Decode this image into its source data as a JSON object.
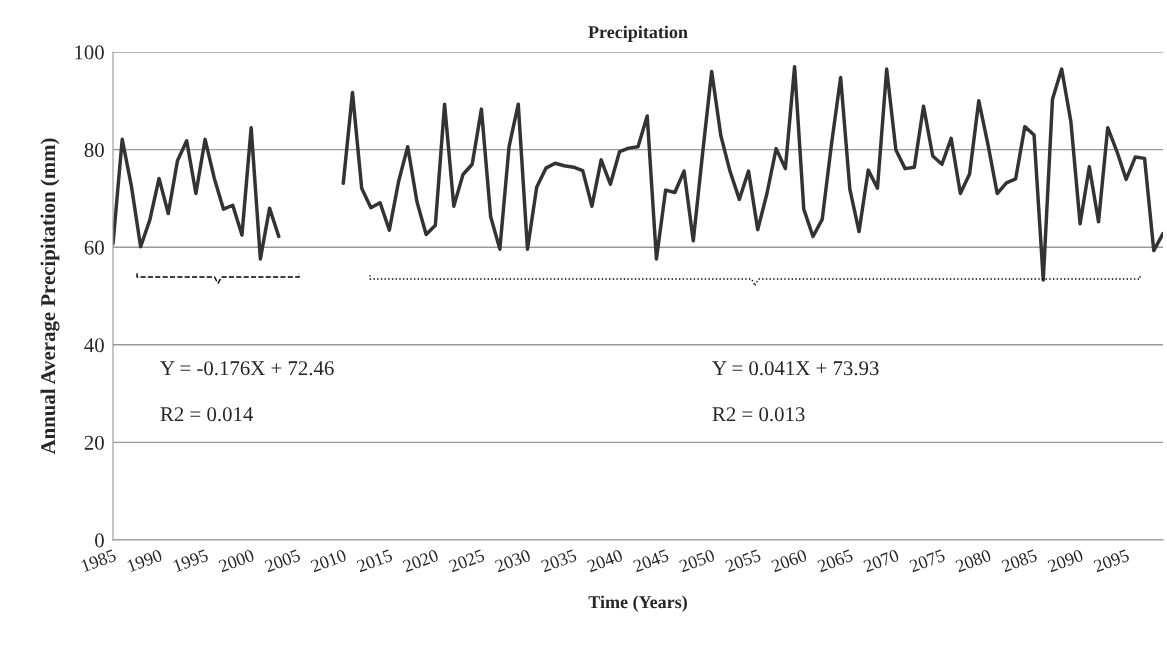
{
  "chart_data": {
    "type": "line",
    "title": "Precipitation",
    "xlabel": "Time (Years)",
    "ylabel": "Annual Average Precipitation (mm)",
    "x": [
      1985,
      1986,
      1987,
      1988,
      1989,
      1990,
      1991,
      1992,
      1993,
      1994,
      1995,
      1996,
      1997,
      1998,
      1999,
      2000,
      2001,
      2002,
      2003,
      2004,
      2005,
      2006,
      2007,
      2008,
      2009,
      2010,
      2011,
      2012,
      2013,
      2014,
      2015,
      2016,
      2017,
      2018,
      2019,
      2020,
      2021,
      2022,
      2023,
      2024,
      2025,
      2026,
      2027,
      2028,
      2029,
      2030,
      2031,
      2032,
      2033,
      2034,
      2035,
      2036,
      2037,
      2038,
      2039,
      2040,
      2041,
      2042,
      2043,
      2044,
      2045,
      2046,
      2047,
      2048,
      2049,
      2050,
      2051,
      2052,
      2053,
      2054,
      2055,
      2056,
      2057,
      2058,
      2059,
      2060,
      2061,
      2062,
      2063,
      2064,
      2065,
      2066,
      2067,
      2068,
      2069,
      2070,
      2071,
      2072,
      2073,
      2074,
      2075,
      2076,
      2077,
      2078,
      2079,
      2080,
      2081,
      2082,
      2083,
      2084,
      2085,
      2086,
      2087,
      2088,
      2089,
      2090,
      2091,
      2092,
      2093,
      2094,
      2095,
      2096,
      2097,
      2098,
      2099
    ],
    "series": [
      {
        "color": "#333333",
        "values": [
          60.7,
          82.1,
          72.5,
          60.1,
          65.6,
          74.1,
          66.9,
          77.7,
          81.8,
          71.0,
          82.1,
          74.1,
          67.8,
          68.6,
          62.5,
          84.5,
          57.6,
          68.0,
          62.2,
          null,
          null,
          null,
          null,
          null,
          null,
          73.1,
          91.7,
          72.1,
          68.1,
          69.1,
          63.5,
          73.4,
          80.6,
          69.3,
          62.6,
          64.5,
          89.3,
          68.4,
          74.9,
          77.0,
          88.3,
          66.3,
          59.6,
          80.6,
          89.3,
          59.6,
          72.3,
          76.2,
          77.2,
          76.7,
          76.4,
          75.7,
          68.4,
          77.9,
          72.9,
          79.6,
          80.3,
          80.6,
          86.9,
          57.6,
          71.7,
          71.2,
          75.6,
          61.3,
          79.0,
          96.0,
          82.8,
          75.5,
          69.8,
          75.6,
          63.6,
          71.0,
          80.2,
          76.1,
          97.0,
          67.8,
          62.2,
          65.7,
          81.0,
          94.8,
          71.9,
          63.2,
          75.8,
          72.1,
          96.5,
          79.9,
          76.1,
          76.4,
          88.9,
          78.7,
          77.0,
          82.3,
          71.0,
          75.0,
          90.0,
          81.0,
          71.0,
          73.2,
          74.0,
          84.7,
          83.0,
          53.3,
          90.3,
          96.5,
          85.7,
          64.8,
          76.5,
          65.2,
          84.5,
          79.6,
          73.9,
          78.5,
          78.2,
          59.3,
          62.8
        ]
      }
    ],
    "xlim": [
      1985,
      2099
    ],
    "xticks": [
      1985,
      1990,
      1995,
      2000,
      2005,
      2010,
      2015,
      2020,
      2025,
      2030,
      2035,
      2040,
      2045,
      2050,
      2055,
      2060,
      2065,
      2070,
      2075,
      2080,
      2085,
      2090,
      2095
    ],
    "ylim": [
      0,
      100
    ],
    "yticks": [
      0,
      20,
      40,
      60,
      80,
      100
    ],
    "grid": "y",
    "marker": "none",
    "line_style": "solid",
    "annotations": [
      "Y = -0.176X + 72.46",
      "R2 = 0.014",
      "Y = 0.041X + 73.93",
      "R2 = 0.013"
    ]
  }
}
